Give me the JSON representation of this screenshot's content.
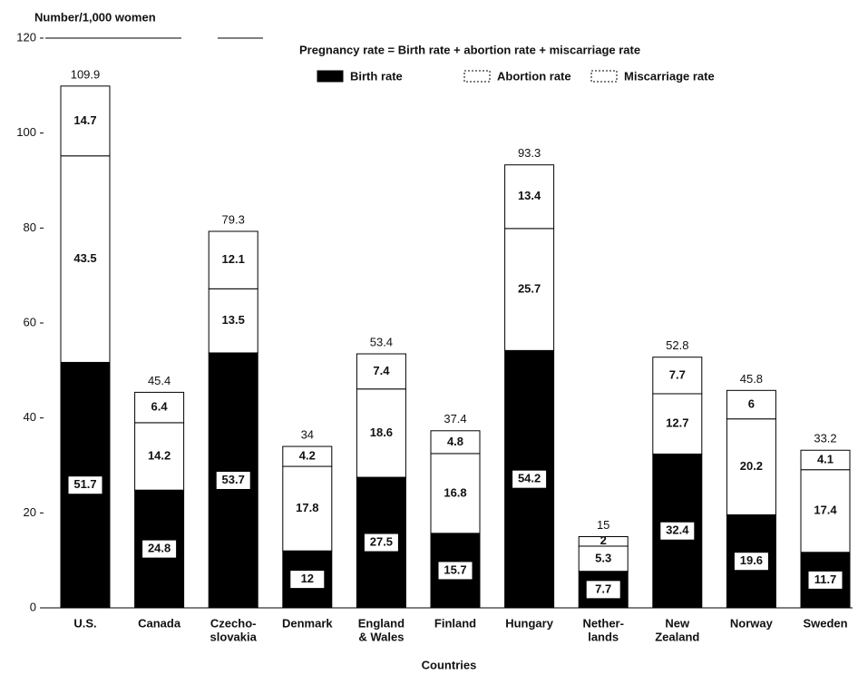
{
  "chart_data": {
    "type": "stacked_bar",
    "y_label": "Number/1,000 women",
    "x_label": "Countries",
    "legend_note": "Pregnancy rate = Birth rate + abortion rate + miscarriage rate",
    "categories": [
      [
        "U.S."
      ],
      [
        "Canada"
      ],
      [
        "Czecho-",
        "slovakia"
      ],
      [
        "Denmark"
      ],
      [
        "England",
        "& Wales"
      ],
      [
        "Finland"
      ],
      [
        "Hungary"
      ],
      [
        "Nether-",
        "lands"
      ],
      [
        "New",
        "Zealand"
      ],
      [
        "Norway"
      ],
      [
        "Sweden"
      ]
    ],
    "series": [
      {
        "name": "Birth rate",
        "color": "#000000",
        "values": [
          51.7,
          24.8,
          53.7,
          12.0,
          27.5,
          15.7,
          54.2,
          7.7,
          32.4,
          19.6,
          11.7
        ]
      },
      {
        "name": "Abortion rate",
        "color": "#ffffff",
        "values": [
          43.5,
          14.2,
          13.5,
          17.8,
          18.6,
          16.8,
          25.7,
          5.3,
          12.7,
          20.2,
          17.4
        ]
      },
      {
        "name": "Miscarriage rate",
        "color": "#ffffff",
        "values": [
          14.7,
          6.4,
          12.1,
          4.2,
          7.4,
          4.8,
          13.4,
          2,
          7.7,
          6,
          4.1
        ]
      }
    ],
    "totals": [
      109.9,
      45.4,
      79.3,
      34.0,
      53.4,
      37.4,
      93.3,
      15.0,
      52.8,
      45.8,
      33.2
    ],
    "ylim": [
      0,
      120
    ],
    "yticks": [
      0,
      20,
      40,
      60,
      80,
      100,
      120
    ],
    "grid": false
  }
}
